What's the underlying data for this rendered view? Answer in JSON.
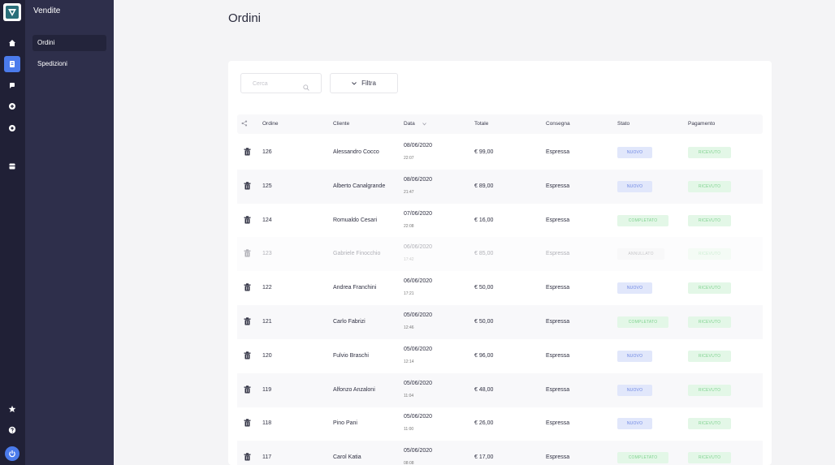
{
  "sidebar": {
    "title": "Vendite",
    "items": [
      {
        "label": "Ordini",
        "active": true
      },
      {
        "label": "Spedizioni",
        "active": false
      }
    ]
  },
  "rail_icons": [
    "home-icon",
    "receipt-icon",
    "chat-icon",
    "settings-icon",
    "gear-icon",
    "store-icon",
    "star-icon",
    "help-icon",
    "power-icon"
  ],
  "page": {
    "title": "Ordini"
  },
  "toolbar": {
    "search_placeholder": "Cerca",
    "filter_label": "Filtra"
  },
  "table": {
    "headers": {
      "ordine": "Ordine",
      "cliente": "Cliente",
      "data": "Data",
      "totale": "Totale",
      "consegna": "Consegna",
      "stato": "Stato",
      "pagamento": "Pagamento"
    },
    "rows": [
      {
        "ordine": "126",
        "cliente": "Alessandro Cocco",
        "data": "08/06/2020",
        "ora": "22:07",
        "totale": "€ 99,00",
        "consegna": "Espressa",
        "stato": "NUOVO",
        "pagamento": "RICEVUTO"
      },
      {
        "ordine": "125",
        "cliente": "Alberto Canalgrande",
        "data": "08/06/2020",
        "ora": "21:47",
        "totale": "€ 89,00",
        "consegna": "Espressa",
        "stato": "NUOVO",
        "pagamento": "RICEVUTO"
      },
      {
        "ordine": "124",
        "cliente": "Romualdo Cesari",
        "data": "07/06/2020",
        "ora": "22:08",
        "totale": "€ 16,00",
        "consegna": "Espressa",
        "stato": "COMPLETATO",
        "pagamento": "RICEVUTO"
      },
      {
        "ordine": "123",
        "cliente": "Gabriele Finocchio",
        "data": "06/06/2020",
        "ora": "17:42",
        "totale": "€ 85,00",
        "consegna": "Espressa",
        "stato": "ANNULLATO",
        "pagamento": "RICEVUTO"
      },
      {
        "ordine": "122",
        "cliente": "Andrea Franchini",
        "data": "06/06/2020",
        "ora": "17:21",
        "totale": "€ 50,00",
        "consegna": "Espressa",
        "stato": "NUOVO",
        "pagamento": "RICEVUTO"
      },
      {
        "ordine": "121",
        "cliente": "Carlo Fabrizi",
        "data": "05/06/2020",
        "ora": "12:46",
        "totale": "€ 50,00",
        "consegna": "Espressa",
        "stato": "COMPLETATO",
        "pagamento": "RICEVUTO"
      },
      {
        "ordine": "120",
        "cliente": "Fulvio Braschi",
        "data": "05/06/2020",
        "ora": "12:14",
        "totale": "€ 96,00",
        "consegna": "Espressa",
        "stato": "NUOVO",
        "pagamento": "RICEVUTO"
      },
      {
        "ordine": "119",
        "cliente": "Alfonzo Anzaloni",
        "data": "05/06/2020",
        "ora": "11:04",
        "totale": "€ 48,00",
        "consegna": "Espressa",
        "stato": "NUOVO",
        "pagamento": "RICEVUTO"
      },
      {
        "ordine": "118",
        "cliente": "Pino Pani",
        "data": "05/06/2020",
        "ora": "11:00",
        "totale": "€ 26,00",
        "consegna": "Espressa",
        "stato": "NUOVO",
        "pagamento": "RICEVUTO"
      },
      {
        "ordine": "117",
        "cliente": "Carol Katia",
        "data": "05/06/2020",
        "ora": "08:08",
        "totale": "€ 17,00",
        "consegna": "Espressa",
        "stato": "COMPLETATO",
        "pagamento": "RICEVUTO"
      }
    ]
  },
  "colors": {
    "rail": "#202036",
    "sidebar": "#2e2f4b",
    "accent": "#4b7bec",
    "badge_new_bg": "#e1e7fb",
    "badge_done_bg": "#e3f7e7"
  }
}
